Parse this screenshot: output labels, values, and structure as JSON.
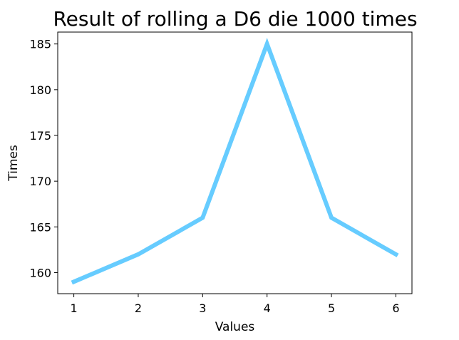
{
  "chart_data": {
    "type": "line",
    "title": "Result of rolling a D6 die 1000 times",
    "xlabel": "Values",
    "ylabel": "Times",
    "x": [
      1,
      2,
      3,
      4,
      5,
      6
    ],
    "series": [
      {
        "values": [
          159,
          162,
          166,
          185,
          166,
          162
        ],
        "color": "#66ccff"
      }
    ],
    "xticks": [
      1,
      2,
      3,
      4,
      5,
      6
    ],
    "yticks": [
      160,
      165,
      170,
      175,
      180,
      185
    ],
    "xlim": [
      0.75,
      6.25
    ],
    "ylim": [
      157.7,
      186.3
    ],
    "grid": false,
    "legend": false
  }
}
